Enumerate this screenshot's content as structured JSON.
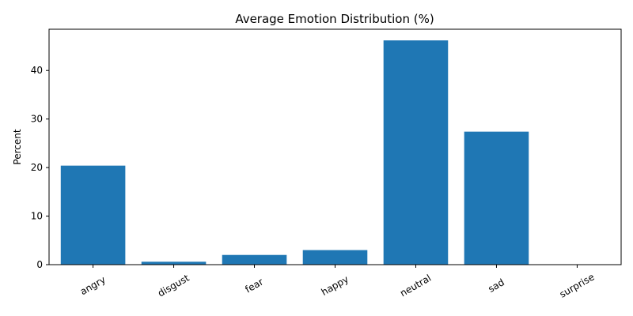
{
  "chart_data": {
    "type": "bar",
    "title": "Average Emotion Distribution (%)",
    "xlabel": "",
    "ylabel": "Percent",
    "categories": [
      "angry",
      "disgust",
      "fear",
      "happy",
      "neutral",
      "sad",
      "surprise"
    ],
    "values": [
      20.4,
      0.6,
      2.0,
      3.0,
      46.2,
      27.4,
      0.0
    ],
    "ylim": [
      0,
      48.5
    ],
    "yticks": [
      0,
      10,
      20,
      30,
      40
    ],
    "ytick_labels": [
      "0",
      "10",
      "20",
      "30",
      "40"
    ],
    "grid": false,
    "legend": "none",
    "bar_color": "#1f77b4",
    "xtick_rotation": 30
  }
}
